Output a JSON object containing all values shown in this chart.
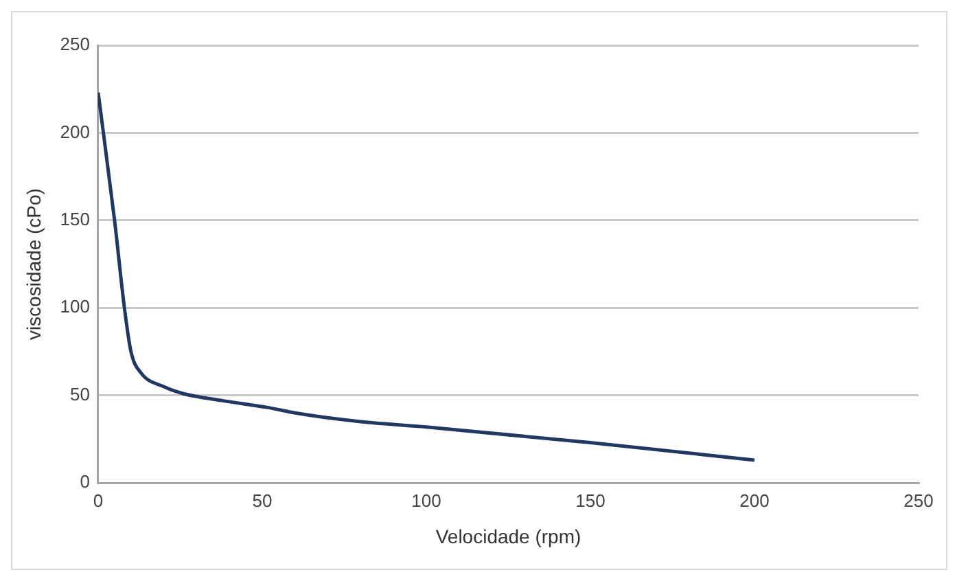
{
  "chart_data": {
    "type": "line",
    "xlabel": "Velocidade (rpm)",
    "ylabel": "viscosidade (cPo)",
    "series": [
      {
        "color": "#1f3864",
        "x": [
          0,
          5,
          8,
          10,
          13,
          20,
          26,
          38,
          52,
          60,
          80,
          100,
          150,
          200
        ],
        "values": [
          223,
          150,
          100,
          75,
          63,
          55,
          51,
          47,
          43,
          40,
          35,
          32,
          23,
          13
        ]
      }
    ],
    "xlim": [
      0,
      250
    ],
    "xticks": [
      0,
      50,
      100,
      150,
      200,
      250
    ],
    "ylim": [
      0,
      250
    ],
    "yticks": [
      0,
      50,
      100,
      150,
      200,
      250
    ],
    "grid": "y",
    "legend": false,
    "marker": "none",
    "line_style": "solid"
  }
}
